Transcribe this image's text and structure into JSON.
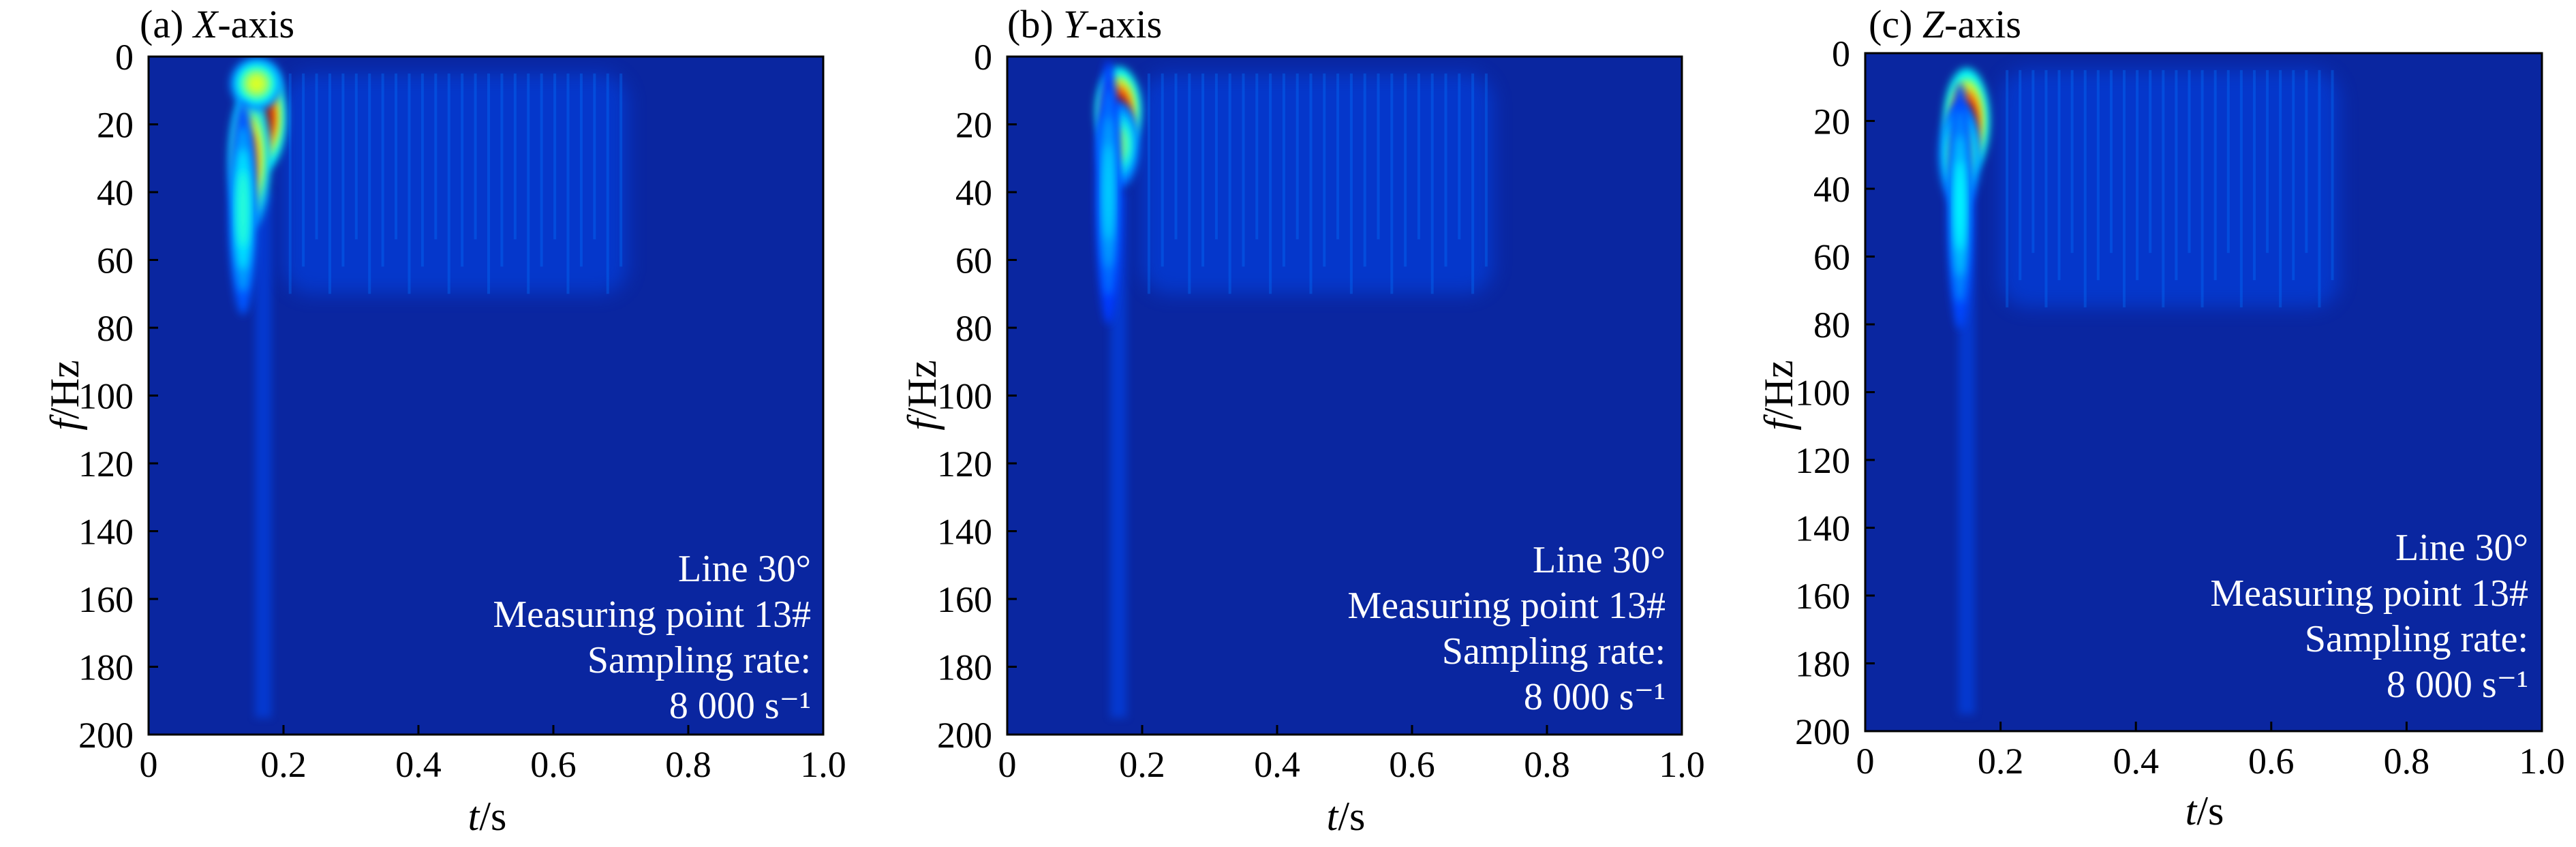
{
  "chart_data": [
    {
      "type": "heatmap",
      "panel_letter": "(a) ",
      "panel_axis": "X",
      "panel_suffix": "-axis",
      "xlabel_var": "t",
      "xlabel_unit": "/s",
      "ylabel_var": "f",
      "ylabel_unit": "/Hz",
      "xlim": [
        0,
        1.0
      ],
      "ylim": [
        0,
        200
      ],
      "y_inverted": true,
      "xticks": [
        "0",
        "0.2",
        "0.4",
        "0.6",
        "0.8",
        "1.0"
      ],
      "yticks": [
        "0",
        "20",
        "40",
        "60",
        "80",
        "100",
        "120",
        "140",
        "160",
        "180",
        "200"
      ],
      "colormap": "jet",
      "annotation": [
        "Line 30°",
        "Measuring point 13#",
        "Sampling rate:",
        "8 000 s⁻¹"
      ],
      "energy_peaks": [
        {
          "t": 0.17,
          "f": 18,
          "intensity": 1.0,
          "sigma_t": 0.013,
          "sigma_f": 6
        },
        {
          "t": 0.15,
          "f": 30,
          "intensity": 0.75,
          "sigma_t": 0.012,
          "sigma_f": 8
        },
        {
          "t": 0.16,
          "f": 8,
          "intensity": 0.55,
          "sigma_t": 0.015,
          "sigma_f": 3
        },
        {
          "t": 0.14,
          "f": 45,
          "intensity": 0.35,
          "sigma_t": 0.008,
          "sigma_f": 12
        }
      ],
      "weak_region": {
        "t": [
          0.2,
          0.71
        ],
        "f": [
          5,
          70
        ]
      }
    },
    {
      "type": "heatmap",
      "panel_letter": "(b) ",
      "panel_axis": "Y",
      "panel_suffix": "-axis",
      "xlabel_var": "t",
      "xlabel_unit": "/s",
      "ylabel_var": "f",
      "ylabel_unit": "/Hz",
      "xlim": [
        0,
        1.0
      ],
      "ylim": [
        0,
        200
      ],
      "y_inverted": true,
      "xticks": [
        "0",
        "0.2",
        "0.4",
        "0.6",
        "0.8",
        "1.0"
      ],
      "yticks": [
        "0",
        "20",
        "40",
        "60",
        "80",
        "100",
        "120",
        "140",
        "160",
        "180",
        "200"
      ],
      "colormap": "jet",
      "annotation": [
        "Line 30°",
        "Measuring point 13#",
        "Sampling rate:",
        "8 000 s⁻¹"
      ],
      "energy_peaks": [
        {
          "t": 0.165,
          "f": 16,
          "intensity": 1.0,
          "sigma_t": 0.013,
          "sigma_f": 5
        },
        {
          "t": 0.165,
          "f": 26,
          "intensity": 0.45,
          "sigma_t": 0.012,
          "sigma_f": 5
        },
        {
          "t": 0.15,
          "f": 40,
          "intensity": 0.25,
          "sigma_t": 0.007,
          "sigma_f": 15
        }
      ],
      "weak_region": {
        "t": [
          0.2,
          0.72
        ],
        "f": [
          5,
          70
        ]
      }
    },
    {
      "type": "heatmap",
      "panel_letter": "(c) ",
      "panel_axis": "Z",
      "panel_suffix": "-axis",
      "xlabel_var": "t",
      "xlabel_unit": "/s",
      "ylabel_var": "f",
      "ylabel_unit": "/Hz",
      "xlim": [
        0,
        1.0
      ],
      "ylim": [
        0,
        200
      ],
      "y_inverted": true,
      "xticks": [
        "0",
        "0.2",
        "0.4",
        "0.6",
        "0.8",
        "1.0"
      ],
      "yticks": [
        "0",
        "20",
        "40",
        "60",
        "80",
        "100",
        "120",
        "140",
        "160",
        "180",
        "200"
      ],
      "colormap": "jet",
      "annotation": [
        "Line 30°",
        "Measuring point 13#",
        "Sampling rate:",
        "8 000 s⁻¹"
      ],
      "energy_peaks": [
        {
          "t": 0.15,
          "f": 20,
          "intensity": 1.0,
          "sigma_t": 0.013,
          "sigma_f": 6
        },
        {
          "t": 0.14,
          "f": 30,
          "intensity": 0.5,
          "sigma_t": 0.012,
          "sigma_f": 6
        },
        {
          "t": 0.14,
          "f": 45,
          "intensity": 0.3,
          "sigma_t": 0.007,
          "sigma_f": 14
        }
      ],
      "weak_region": {
        "t": [
          0.2,
          0.7
        ],
        "f": [
          5,
          75
        ]
      }
    }
  ]
}
